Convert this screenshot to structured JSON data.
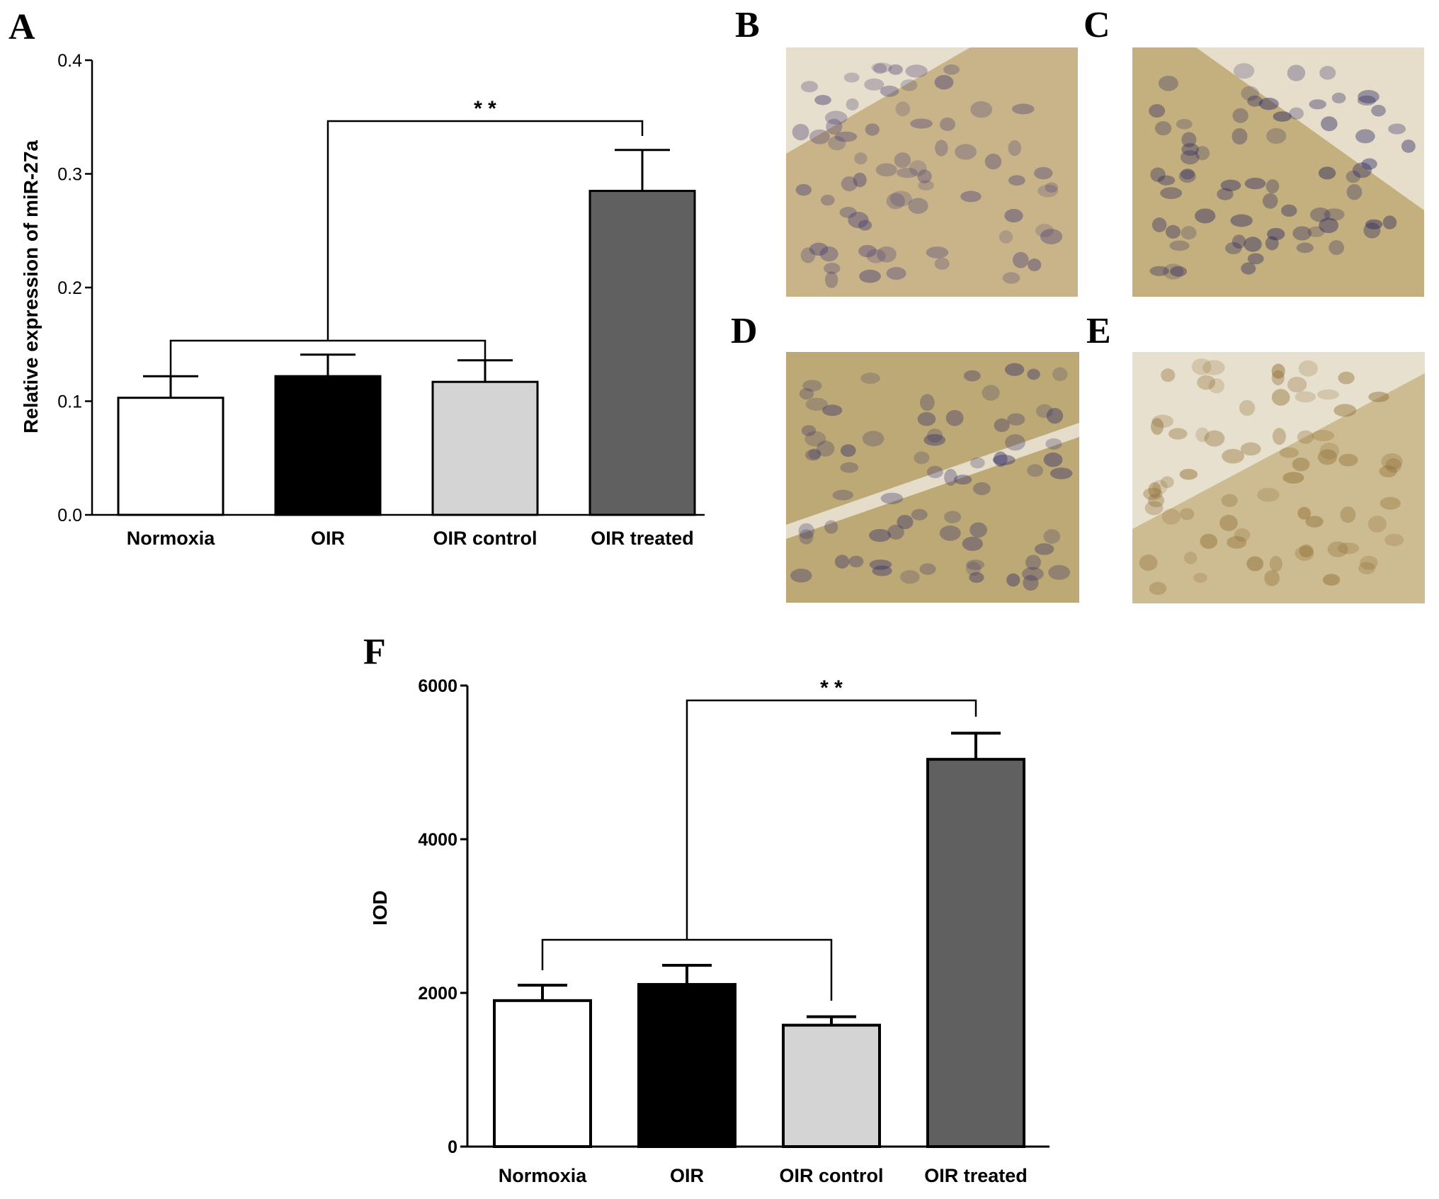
{
  "chart_data": [
    {
      "panel": "A",
      "type": "bar",
      "categories": [
        "Normoxia",
        "OIR",
        "OIR control",
        "OIR treated"
      ],
      "values": [
        0.103,
        0.122,
        0.117,
        0.285
      ],
      "errors": [
        0.019,
        0.019,
        0.019,
        0.036
      ],
      "colors": [
        "#ffffff",
        "#000000",
        "#d4d4d4",
        "#606060"
      ],
      "ylabel": "Relative expression of miR-27a",
      "ylim": [
        0,
        0.4
      ],
      "yticks": [
        "0.0",
        "0.1",
        "0.2",
        "0.3",
        "0.4"
      ],
      "significance": "* *",
      "grid": false
    },
    {
      "panel": "F",
      "type": "bar",
      "categories": [
        "Normoxia",
        "OIR",
        "OIR control",
        "OIR treated"
      ],
      "values": [
        1900,
        2110,
        1580,
        5040
      ],
      "errors": [
        200,
        250,
        110,
        340
      ],
      "colors": [
        "#ffffff",
        "#000000",
        "#d4d4d4",
        "#606060"
      ],
      "ylabel": "IOD",
      "ylim": [
        0,
        6000
      ],
      "yticks": [
        "0",
        "2000",
        "4000",
        "6000"
      ],
      "significance": "* *",
      "grid": false
    }
  ],
  "micrographs": [
    {
      "letter": "B",
      "tone": "#c9b48a",
      "stain": "#4a3f73"
    },
    {
      "letter": "C",
      "tone": "#c4b07e",
      "stain": "#2a2660"
    },
    {
      "letter": "D",
      "tone": "#bda976",
      "stain": "#3a3368"
    },
    {
      "letter": "E",
      "tone": "#cdbb92",
      "stain": "#8c6a30"
    }
  ]
}
